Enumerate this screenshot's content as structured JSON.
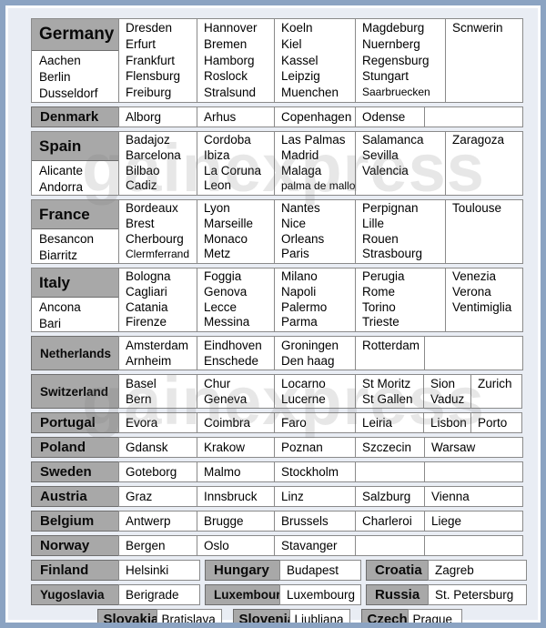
{
  "page": {
    "watermark": "gainexpress",
    "colors": {
      "frame_border": "#8ba3c2",
      "background": "#e9edf4",
      "header_gray": "#a8a8a8",
      "cell_border": "#8a8a8a",
      "text": "#000000"
    }
  },
  "table": {
    "rows": [
      {
        "kind": "large",
        "country": "Germany",
        "country_cities": [
          "Aachen",
          "Berlin",
          "Dusseldorf"
        ],
        "cols": [
          [
            "Dresden",
            "Erfurt",
            "Frankfurt",
            "Flensburg",
            "Freiburg"
          ],
          [
            "Hannover",
            "Bremen",
            "Hamborg",
            "Roslock",
            "Stralsund"
          ],
          [
            "Koeln",
            "Kiel",
            "Kassel",
            "Leipzig",
            "Muenchen"
          ],
          [
            "Magdeburg",
            "Nuernberg",
            "Regensburg",
            "Stungart",
            "Saarbruecken"
          ],
          [
            "Scnwerin"
          ]
        ]
      },
      {
        "kind": "single",
        "country": "Denmark",
        "cols": [
          [
            "Alborg"
          ],
          [
            "Arhus"
          ],
          [
            "Copenhagen"
          ],
          [
            "Odense"
          ],
          []
        ]
      },
      {
        "kind": "large",
        "country": "Spain",
        "country_cities": [
          "Alicante",
          "Andorra"
        ],
        "cols": [
          [
            "Badajoz",
            "Barcelona",
            "Bilbao",
            "Cadiz"
          ],
          [
            "Cordoba",
            "Ibiza",
            "La Coruna",
            "Leon"
          ],
          [
            "Las Palmas",
            "Madrid",
            "Malaga",
            "palma de mallorca"
          ],
          [
            "Salamanca",
            "Sevilla",
            "Valencia"
          ],
          [
            "Zaragoza"
          ]
        ]
      },
      {
        "kind": "large",
        "country": "France",
        "country_cities": [
          "Besancon",
          "Biarritz"
        ],
        "cols": [
          [
            "Bordeaux",
            "Brest",
            "Cherbourg",
            "Clermferrand"
          ],
          [
            "Lyon",
            "Marseille",
            "Monaco",
            "Metz"
          ],
          [
            "Nantes",
            "Nice",
            "Orleans",
            "Paris"
          ],
          [
            "Perpignan",
            "Lille",
            "Rouen",
            "Strasbourg"
          ],
          [
            "Toulouse"
          ]
        ]
      },
      {
        "kind": "large",
        "country": "Italy",
        "country_cities": [
          "Ancona",
          "Bari"
        ],
        "cols": [
          [
            "Bologna",
            "Cagliari",
            "Catania",
            "Firenze"
          ],
          [
            "Foggia",
            "Genova",
            "Lecce",
            "Messina"
          ],
          [
            "Milano",
            "Napoli",
            "Palermo",
            "Parma"
          ],
          [
            "Perugia",
            "Rome",
            "Torino",
            "Trieste"
          ],
          [
            "Venezia",
            "Verona",
            "Ventimiglia"
          ]
        ]
      },
      {
        "kind": "single",
        "country": "Netherlands",
        "cols": [
          [
            "Amsterdam",
            "Arnheim"
          ],
          [
            "Eindhoven",
            "Enschede"
          ],
          [
            "Groningen",
            "Den haag"
          ],
          [
            "Rotterdam"
          ],
          []
        ]
      },
      {
        "kind": "six",
        "country": "Switzerland",
        "cols": [
          [
            "Basel",
            "Bern"
          ],
          [
            "Chur",
            "Geneva"
          ],
          [
            "Locarno",
            "Lucerne"
          ],
          [
            "St Moritz",
            "St Gallen"
          ],
          [
            "Sion",
            "Vaduz"
          ],
          [
            "Zurich"
          ]
        ]
      },
      {
        "kind": "six",
        "country": "Portugal",
        "cols": [
          [
            "Evora"
          ],
          [
            "Coimbra"
          ],
          [
            "Faro"
          ],
          [
            "Leiria"
          ],
          [
            "Lisbon"
          ],
          [
            "Porto"
          ]
        ]
      },
      {
        "kind": "single",
        "country": "Poland",
        "cols": [
          [
            "Gdansk"
          ],
          [
            "Krakow"
          ],
          [
            "Poznan"
          ],
          [
            "Szczecin"
          ],
          [
            "Warsaw"
          ]
        ]
      },
      {
        "kind": "single",
        "country": "Sweden",
        "cols": [
          [
            "Goteborg"
          ],
          [
            "Malmo"
          ],
          [
            "Stockholm"
          ],
          [],
          []
        ]
      },
      {
        "kind": "single",
        "country": "Austria",
        "cols": [
          [
            "Graz"
          ],
          [
            "Innsbruck"
          ],
          [
            "Linz"
          ],
          [
            "Salzburg"
          ],
          [
            "Vienna"
          ]
        ]
      },
      {
        "kind": "single",
        "country": "Belgium",
        "cols": [
          [
            "Antwerp"
          ],
          [
            "Brugge"
          ],
          [
            "Brussels"
          ],
          [
            "Charleroi"
          ],
          [
            "Liege"
          ]
        ]
      },
      {
        "kind": "single",
        "country": "Norway",
        "cols": [
          [
            "Bergen"
          ],
          [
            "Oslo"
          ],
          [
            "Stavanger"
          ],
          [],
          []
        ]
      },
      {
        "kind": "pairs",
        "pairs": [
          {
            "country": "Finland",
            "city": "Helsinki"
          },
          {
            "country": "Hungary",
            "city": "Budapest"
          },
          {
            "country": "Croatia",
            "city": "Zagreb"
          }
        ]
      },
      {
        "kind": "pairs",
        "pairs": [
          {
            "country": "Yugoslavia",
            "city": "Berigrade"
          },
          {
            "country": "Luxembourg",
            "city": "Luxembourg"
          },
          {
            "country": "Russia",
            "city": "St. Petersburg"
          }
        ]
      },
      {
        "kind": "pairs-centered",
        "pairs": [
          {
            "country": "Slovakia",
            "city": "Bratislava"
          },
          {
            "country": "Slovenia",
            "city": "Ljubljana"
          },
          {
            "country": "Czech",
            "city": "Prague"
          }
        ]
      }
    ]
  }
}
